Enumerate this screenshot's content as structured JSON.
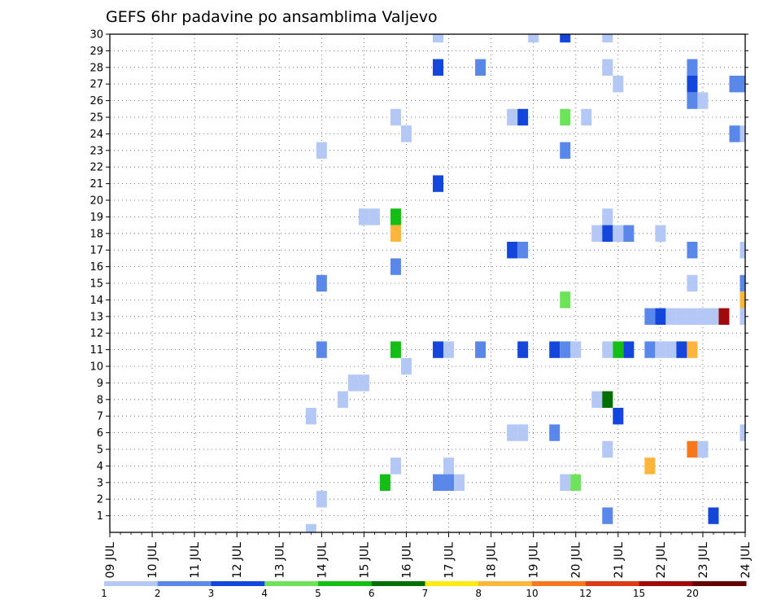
{
  "chart_data": {
    "type": "heatmap",
    "title": "GEFS 6hr padavine po ansamblima Valjevo",
    "x_ticks": [
      "09 JUL",
      "10 JUL",
      "11 JUL",
      "12 JUL",
      "13 JUL",
      "14 JUL",
      "15 JUL",
      "16 JUL",
      "17 JUL",
      "18 JUL",
      "19 JUL",
      "20 JUL",
      "21 JUL",
      "22 JUL",
      "23 JUL",
      "24 JUL"
    ],
    "y_ticks": [
      "1",
      "2",
      "3",
      "4",
      "5",
      "6",
      "7",
      "8",
      "9",
      "10",
      "11",
      "12",
      "13",
      "14",
      "15",
      "16",
      "17",
      "18",
      "19",
      "20",
      "21",
      "22",
      "23",
      "24",
      "25",
      "26",
      "27",
      "28",
      "29",
      "30"
    ],
    "xlim": [
      9,
      24
    ],
    "ylim": [
      0,
      30
    ],
    "x_units": "days (July)",
    "time_step_hours": 6,
    "grid": true,
    "legend_position": "bottom",
    "legend": {
      "labels": [
        "1",
        "2",
        "3",
        "4",
        "5",
        "6",
        "7",
        "8",
        "10",
        "12",
        "15",
        "20"
      ],
      "colors": [
        "#b4c8f5",
        "#5a88ea",
        "#1446dc",
        "#6ee25a",
        "#14be14",
        "#006e00",
        "#ffeb14",
        "#ffb43c",
        "#f5781e",
        "#dc3c14",
        "#a00a0a",
        "#640000"
      ]
    },
    "cells": [
      {
        "day": 16.75,
        "member": 30,
        "level": 1
      },
      {
        "day": 19.0,
        "member": 30,
        "level": 1
      },
      {
        "day": 19.75,
        "member": 30,
        "level": 3
      },
      {
        "day": 20.75,
        "member": 30,
        "level": 1
      },
      {
        "day": 16.75,
        "member": 28,
        "level": 3
      },
      {
        "day": 17.75,
        "member": 28,
        "level": 2
      },
      {
        "day": 20.75,
        "member": 28,
        "level": 1
      },
      {
        "day": 22.75,
        "member": 28,
        "level": 2
      },
      {
        "day": 21.0,
        "member": 27,
        "level": 1
      },
      {
        "day": 22.75,
        "member": 27,
        "level": 3
      },
      {
        "day": 23.75,
        "member": 27,
        "level": 2
      },
      {
        "day": 24.0,
        "member": 27,
        "level": 2
      },
      {
        "day": 22.75,
        "member": 26,
        "level": 2
      },
      {
        "day": 23.0,
        "member": 26,
        "level": 1
      },
      {
        "day": 15.75,
        "member": 25,
        "level": 1
      },
      {
        "day": 18.5,
        "member": 25,
        "level": 1
      },
      {
        "day": 18.75,
        "member": 25,
        "level": 3
      },
      {
        "day": 19.75,
        "member": 25,
        "level": 4
      },
      {
        "day": 20.25,
        "member": 25,
        "level": 1
      },
      {
        "day": 16.0,
        "member": 24,
        "level": 1
      },
      {
        "day": 23.75,
        "member": 24,
        "level": 2
      },
      {
        "day": 24.0,
        "member": 24,
        "level": 1
      },
      {
        "day": 14.0,
        "member": 23,
        "level": 1
      },
      {
        "day": 19.75,
        "member": 23,
        "level": 2
      },
      {
        "day": 16.75,
        "member": 21,
        "level": 3
      },
      {
        "day": 15.0,
        "member": 19,
        "level": 1
      },
      {
        "day": 15.25,
        "member": 19,
        "level": 1
      },
      {
        "day": 15.75,
        "member": 19,
        "level": 5
      },
      {
        "day": 20.75,
        "member": 19,
        "level": 1
      },
      {
        "day": 15.75,
        "member": 18,
        "level": 8
      },
      {
        "day": 20.5,
        "member": 18,
        "level": 1
      },
      {
        "day": 20.75,
        "member": 18,
        "level": 3
      },
      {
        "day": 21.0,
        "member": 18,
        "level": 1
      },
      {
        "day": 21.25,
        "member": 18,
        "level": 2
      },
      {
        "day": 22.0,
        "member": 18,
        "level": 1
      },
      {
        "day": 18.5,
        "member": 17,
        "level": 3
      },
      {
        "day": 18.75,
        "member": 17,
        "level": 2
      },
      {
        "day": 22.75,
        "member": 17,
        "level": 2
      },
      {
        "day": 24.0,
        "member": 17,
        "level": 1
      },
      {
        "day": 15.75,
        "member": 16,
        "level": 2
      },
      {
        "day": 14.0,
        "member": 15,
        "level": 2
      },
      {
        "day": 22.75,
        "member": 15,
        "level": 1
      },
      {
        "day": 24.0,
        "member": 15,
        "level": 2
      },
      {
        "day": 19.75,
        "member": 14,
        "level": 4
      },
      {
        "day": 24.0,
        "member": 14,
        "level": 8
      },
      {
        "day": 21.75,
        "member": 13,
        "level": 2
      },
      {
        "day": 22.0,
        "member": 13,
        "level": 3
      },
      {
        "day": 22.25,
        "member": 13,
        "level": 1
      },
      {
        "day": 22.5,
        "member": 13,
        "level": 1
      },
      {
        "day": 22.75,
        "member": 13,
        "level": 1
      },
      {
        "day": 23.0,
        "member": 13,
        "level": 1
      },
      {
        "day": 23.25,
        "member": 13,
        "level": 1
      },
      {
        "day": 23.5,
        "member": 13,
        "level": 11
      },
      {
        "day": 24.0,
        "member": 13,
        "level": 1
      },
      {
        "day": 14.0,
        "member": 11,
        "level": 2
      },
      {
        "day": 15.75,
        "member": 11,
        "level": 5
      },
      {
        "day": 16.75,
        "member": 11,
        "level": 3
      },
      {
        "day": 17.0,
        "member": 11,
        "level": 1
      },
      {
        "day": 17.75,
        "member": 11,
        "level": 2
      },
      {
        "day": 18.75,
        "member": 11,
        "level": 3
      },
      {
        "day": 19.5,
        "member": 11,
        "level": 3
      },
      {
        "day": 19.75,
        "member": 11,
        "level": 2
      },
      {
        "day": 20.0,
        "member": 11,
        "level": 1
      },
      {
        "day": 20.75,
        "member": 11,
        "level": 1
      },
      {
        "day": 21.0,
        "member": 11,
        "level": 5
      },
      {
        "day": 21.25,
        "member": 11,
        "level": 3
      },
      {
        "day": 21.75,
        "member": 11,
        "level": 2
      },
      {
        "day": 22.0,
        "member": 11,
        "level": 1
      },
      {
        "day": 22.25,
        "member": 11,
        "level": 1
      },
      {
        "day": 22.5,
        "member": 11,
        "level": 3
      },
      {
        "day": 22.75,
        "member": 11,
        "level": 8
      },
      {
        "day": 16.0,
        "member": 10,
        "level": 1
      },
      {
        "day": 14.75,
        "member": 9,
        "level": 1
      },
      {
        "day": 15.0,
        "member": 9,
        "level": 1
      },
      {
        "day": 14.5,
        "member": 8,
        "level": 1
      },
      {
        "day": 20.5,
        "member": 8,
        "level": 1
      },
      {
        "day": 20.75,
        "member": 8,
        "level": 6
      },
      {
        "day": 13.75,
        "member": 7,
        "level": 1
      },
      {
        "day": 21.0,
        "member": 7,
        "level": 3
      },
      {
        "day": 18.5,
        "member": 6,
        "level": 1
      },
      {
        "day": 18.75,
        "member": 6,
        "level": 1
      },
      {
        "day": 19.5,
        "member": 6,
        "level": 2
      },
      {
        "day": 24.0,
        "member": 6,
        "level": 1
      },
      {
        "day": 20.75,
        "member": 5,
        "level": 1
      },
      {
        "day": 22.75,
        "member": 5,
        "level": 9
      },
      {
        "day": 23.0,
        "member": 5,
        "level": 1
      },
      {
        "day": 15.75,
        "member": 4,
        "level": 1
      },
      {
        "day": 17.0,
        "member": 4,
        "level": 1
      },
      {
        "day": 21.75,
        "member": 4,
        "level": 8
      },
      {
        "day": 15.5,
        "member": 3,
        "level": 5
      },
      {
        "day": 16.75,
        "member": 3,
        "level": 2
      },
      {
        "day": 17.0,
        "member": 3,
        "level": 2
      },
      {
        "day": 17.25,
        "member": 3,
        "level": 1
      },
      {
        "day": 19.75,
        "member": 3,
        "level": 1
      },
      {
        "day": 20.0,
        "member": 3,
        "level": 4
      },
      {
        "day": 14.0,
        "member": 2,
        "level": 1
      },
      {
        "day": 20.75,
        "member": 1,
        "level": 2
      },
      {
        "day": 23.25,
        "member": 1,
        "level": 3
      },
      {
        "day": 13.75,
        "member": 0,
        "level": 1
      }
    ]
  }
}
